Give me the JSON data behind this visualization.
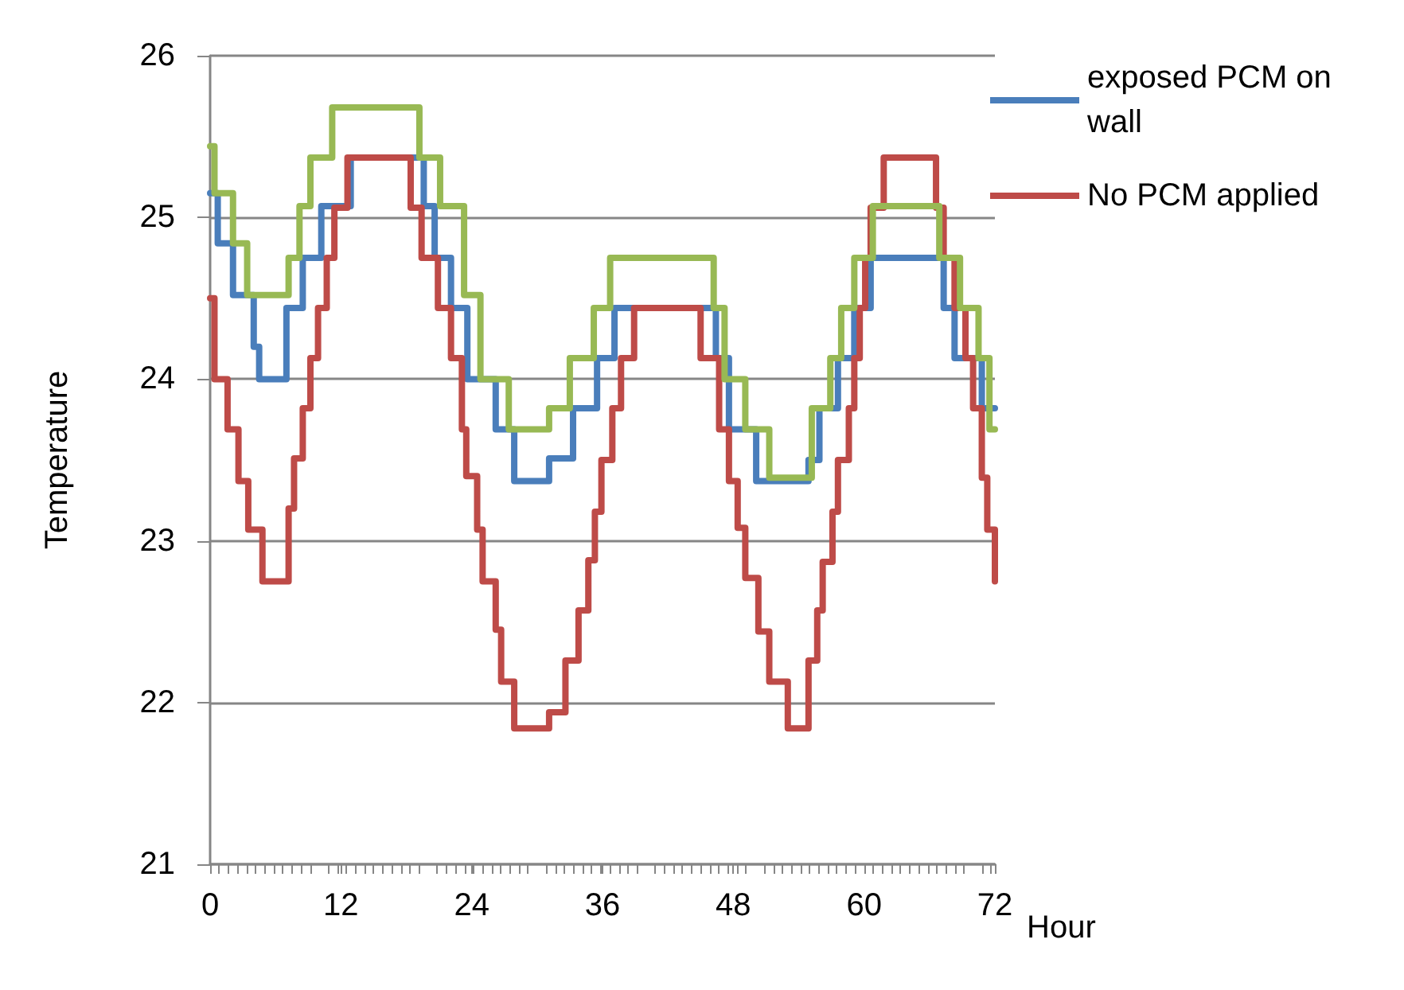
{
  "chart_data": {
    "type": "step",
    "xlabel": "Hour",
    "ylabel": "Temperature",
    "xlim": [
      0,
      72
    ],
    "xticks": [
      0,
      12,
      24,
      36,
      48,
      60,
      72
    ],
    "ylim": [
      21,
      26
    ],
    "yticks": [
      21,
      22,
      23,
      24,
      25,
      26
    ],
    "grid": "y",
    "legend": "top right",
    "marker": "none",
    "line_style": "solid",
    "series": [
      {
        "name": "exposed PCM on wall",
        "color": "#4a7ebb",
        "x": [
          0,
          0.7,
          2.1,
          4.0,
          4.5,
          7.0,
          8.5,
          10.2,
          12.9,
          19.6,
          20.6,
          22.1,
          23.6,
          26.2,
          27.9,
          31.1,
          33.3,
          35.5,
          37.1,
          46.4,
          47.6,
          50.1,
          54.9,
          55.9,
          57.6,
          59.1,
          60.6,
          67.3,
          68.3,
          70.8,
          72
        ],
        "values": [
          25.15,
          24.84,
          24.52,
          24.2,
          24.0,
          24.44,
          24.75,
          25.07,
          25.37,
          25.07,
          24.75,
          24.44,
          24.0,
          23.69,
          23.37,
          23.51,
          23.82,
          24.13,
          24.44,
          24.13,
          23.69,
          23.37,
          23.5,
          23.82,
          24.13,
          24.44,
          24.75,
          24.44,
          24.13,
          23.82,
          23.82
        ]
      },
      {
        "name": "No PCM applied",
        "color": "#be4b48",
        "x": [
          0,
          0.4,
          1.6,
          2.6,
          3.5,
          4.8,
          7.2,
          7.7,
          8.5,
          9.2,
          9.9,
          10.7,
          11.4,
          12.6,
          18.4,
          19.4,
          20.9,
          22.1,
          23.1,
          23.5,
          24.5,
          25.0,
          26.2,
          26.7,
          27.9,
          31.1,
          32.6,
          33.8,
          34.7,
          35.3,
          35.9,
          36.9,
          37.7,
          38.9,
          45.0,
          46.7,
          47.6,
          48.4,
          49.1,
          50.3,
          51.3,
          53.0,
          54.9,
          55.7,
          56.2,
          57.1,
          57.6,
          58.6,
          59.1,
          59.6,
          60.1,
          60.6,
          61.8,
          66.6,
          67.3,
          68.3,
          69.3,
          70.0,
          70.8,
          71.3,
          72
        ],
        "values": [
          24.5,
          24.0,
          23.69,
          23.37,
          23.07,
          22.75,
          23.2,
          23.51,
          23.82,
          24.13,
          24.44,
          24.75,
          25.06,
          25.37,
          25.06,
          24.75,
          24.44,
          24.13,
          23.69,
          23.4,
          23.07,
          22.75,
          22.45,
          22.13,
          21.84,
          21.94,
          22.26,
          22.57,
          22.88,
          23.18,
          23.5,
          23.82,
          24.13,
          24.44,
          24.13,
          23.69,
          23.37,
          23.08,
          22.77,
          22.44,
          22.13,
          21.84,
          22.26,
          22.57,
          22.87,
          23.18,
          23.5,
          23.82,
          24.13,
          24.44,
          24.75,
          25.06,
          25.37,
          25.06,
          24.75,
          24.44,
          24.13,
          23.82,
          23.39,
          23.07,
          22.75
        ]
      },
      {
        "color": "#98b954",
        "x": [
          0,
          0.4,
          2.1,
          3.4,
          7.2,
          8.2,
          9.2,
          11.2,
          19.2,
          21.1,
          23.3,
          24.8,
          27.4,
          31.1,
          33.0,
          35.2,
          36.7,
          46.2,
          47.2,
          49.1,
          51.3,
          55.2,
          56.9,
          57.9,
          59.1,
          60.8,
          66.9,
          68.8,
          70.5,
          71.5,
          72
        ],
        "values": [
          25.44,
          25.15,
          24.84,
          24.52,
          24.75,
          25.07,
          25.37,
          25.68,
          25.37,
          25.07,
          24.52,
          24.0,
          23.69,
          23.82,
          24.13,
          24.44,
          24.75,
          24.44,
          24.0,
          23.69,
          23.39,
          23.82,
          24.13,
          24.44,
          24.75,
          25.07,
          24.75,
          24.44,
          24.13,
          23.69,
          23.69
        ]
      }
    ]
  }
}
